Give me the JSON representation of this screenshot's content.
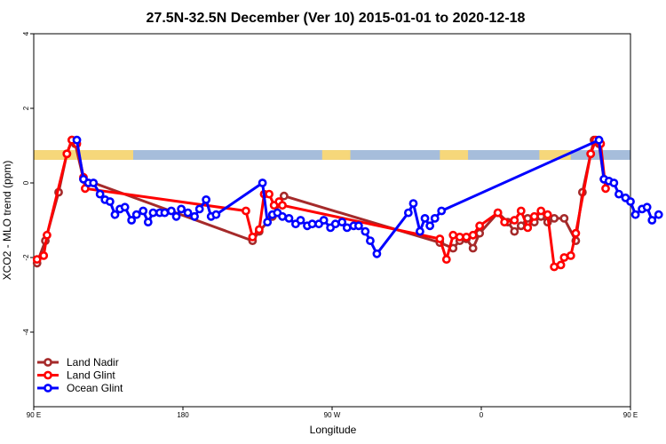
{
  "chart_data": {
    "type": "line",
    "title": "27.5N-32.5N December (Ver 10)   2015-01-01 to 2020-12-18",
    "xlabel": "Longitude",
    "ylabel": "XCO2 - MLO trend (ppm)",
    "xlim": [
      90,
      450
    ],
    "ylim": [
      -6,
      4
    ],
    "x_ticks": [
      {
        "value": 90,
        "label": "90 E"
      },
      {
        "value": 180,
        "label": "180"
      },
      {
        "value": 270,
        "label": "90 W"
      },
      {
        "value": 360,
        "label": "0"
      },
      {
        "value": 450,
        "label": "90 E"
      },
      {
        "value": 540,
        "label": "180"
      }
    ],
    "y_ticks": [
      {
        "value": 4,
        "label": "4"
      },
      {
        "value": 2,
        "label": "2"
      },
      {
        "value": 0,
        "label": "0"
      },
      {
        "value": -2,
        "label": "-2"
      },
      {
        "value": -4,
        "label": "-4"
      }
    ],
    "legend_position": "bottom-left",
    "land_mask_band": {
      "y_range": [
        0.62,
        0.88
      ],
      "land_color": "#f6d77a",
      "ocean_color": "#a6bddb",
      "land_segments": [
        [
          90,
          150
        ],
        [
          264,
          281
        ],
        [
          335,
          352
        ],
        [
          395,
          414
        ],
        [
          450,
          510
        ]
      ]
    },
    "series": [
      {
        "name": "Land Nadir",
        "color": "#a52a2a",
        "points": [
          [
            92,
            -2.15
          ],
          [
            97,
            -1.55
          ],
          [
            105,
            -0.25
          ],
          [
            110,
            0.78
          ],
          [
            113,
            1.15
          ],
          [
            115,
            1.05
          ],
          [
            120,
            0.1
          ],
          [
            222,
            -1.55
          ],
          [
            226,
            -1.3
          ],
          [
            234,
            -0.9
          ],
          [
            241,
            -0.35
          ],
          [
            335,
            -1.6
          ],
          [
            343,
            -1.75
          ],
          [
            347,
            -1.55
          ],
          [
            351,
            -1.5
          ],
          [
            355,
            -1.75
          ],
          [
            359,
            -1.35
          ],
          [
            370,
            -0.8
          ],
          [
            376,
            -1.05
          ],
          [
            380,
            -1.3
          ],
          [
            384,
            -1.15
          ],
          [
            388,
            -0.95
          ],
          [
            392,
            -1.05
          ],
          [
            396,
            -0.9
          ],
          [
            400,
            -1.05
          ],
          [
            404,
            -0.95
          ],
          [
            410,
            -0.95
          ],
          [
            417,
            -1.55
          ],
          [
            421,
            -0.25
          ],
          [
            426,
            0.78
          ],
          [
            428,
            1.15
          ],
          [
            431,
            1.05
          ],
          [
            434,
            0.1
          ]
        ]
      },
      {
        "name": "Land Glint",
        "color": "#ff0000",
        "points": [
          [
            92,
            -2.05
          ],
          [
            96,
            -1.95
          ],
          [
            98,
            -1.4
          ],
          [
            110,
            0.78
          ],
          [
            113,
            1.15
          ],
          [
            116,
            1.05
          ],
          [
            120,
            0.15
          ],
          [
            121,
            -0.15
          ],
          [
            218,
            -0.75
          ],
          [
            222,
            -1.45
          ],
          [
            226,
            -1.25
          ],
          [
            229,
            -0.3
          ],
          [
            232,
            -0.3
          ],
          [
            235,
            -0.6
          ],
          [
            238,
            -0.5
          ],
          [
            240,
            -0.6
          ],
          [
            335,
            -1.5
          ],
          [
            339,
            -2.05
          ],
          [
            343,
            -1.4
          ],
          [
            347,
            -1.45
          ],
          [
            351,
            -1.45
          ],
          [
            355,
            -1.4
          ],
          [
            359,
            -1.15
          ],
          [
            370,
            -0.8
          ],
          [
            374,
            -1.05
          ],
          [
            380,
            -1.0
          ],
          [
            384,
            -0.75
          ],
          [
            388,
            -1.2
          ],
          [
            392,
            -0.9
          ],
          [
            396,
            -0.75
          ],
          [
            400,
            -0.85
          ],
          [
            404,
            -2.25
          ],
          [
            408,
            -2.2
          ],
          [
            410,
            -2.0
          ],
          [
            414,
            -1.95
          ],
          [
            417,
            -1.35
          ],
          [
            426,
            0.78
          ],
          [
            429,
            1.15
          ],
          [
            432,
            1.05
          ],
          [
            435,
            -0.15
          ]
        ]
      },
      {
        "name": "Ocean Glint",
        "color": "#0000ff",
        "points": [
          [
            116,
            1.15
          ],
          [
            120,
            0.1
          ],
          [
            123,
            0.0
          ],
          [
            126,
            0.0
          ],
          [
            130,
            -0.3
          ],
          [
            133,
            -0.45
          ],
          [
            136,
            -0.5
          ],
          [
            139,
            -0.85
          ],
          [
            142,
            -0.7
          ],
          [
            145,
            -0.65
          ],
          [
            149,
            -1.0
          ],
          [
            152,
            -0.85
          ],
          [
            156,
            -0.75
          ],
          [
            159,
            -1.05
          ],
          [
            162,
            -0.8
          ],
          [
            166,
            -0.8
          ],
          [
            169,
            -0.8
          ],
          [
            173,
            -0.75
          ],
          [
            176,
            -0.9
          ],
          [
            179,
            -0.7
          ],
          [
            183,
            -0.8
          ],
          [
            187,
            -0.9
          ],
          [
            190,
            -0.7
          ],
          [
            194,
            -0.45
          ],
          [
            197,
            -0.9
          ],
          [
            200,
            -0.85
          ],
          [
            228,
            0.0
          ],
          [
            231,
            -1.05
          ],
          [
            234,
            -0.85
          ],
          [
            237,
            -0.8
          ],
          [
            240,
            -0.9
          ],
          [
            244,
            -0.95
          ],
          [
            248,
            -1.1
          ],
          [
            251,
            -1.0
          ],
          [
            255,
            -1.15
          ],
          [
            258,
            -1.1
          ],
          [
            262,
            -1.1
          ],
          [
            265,
            -1.0
          ],
          [
            269,
            -1.2
          ],
          [
            272,
            -1.1
          ],
          [
            276,
            -1.05
          ],
          [
            279,
            -1.2
          ],
          [
            283,
            -1.15
          ],
          [
            286,
            -1.15
          ],
          [
            290,
            -1.3
          ],
          [
            293,
            -1.55
          ],
          [
            297,
            -1.9
          ],
          [
            316,
            -0.8
          ],
          [
            319,
            -0.55
          ],
          [
            323,
            -1.3
          ],
          [
            326,
            -0.95
          ],
          [
            329,
            -1.15
          ],
          [
            332,
            -0.95
          ],
          [
            336,
            -0.75
          ],
          [
            431,
            1.15
          ],
          [
            434,
            0.1
          ],
          [
            437,
            0.05
          ],
          [
            440,
            0.0
          ],
          [
            443,
            -0.3
          ],
          [
            447,
            -0.4
          ],
          [
            450,
            -0.5
          ],
          [
            453,
            -0.85
          ],
          [
            457,
            -0.7
          ],
          [
            460,
            -0.65
          ],
          [
            463,
            -1.0
          ],
          [
            467,
            -0.85
          ]
        ]
      }
    ]
  }
}
